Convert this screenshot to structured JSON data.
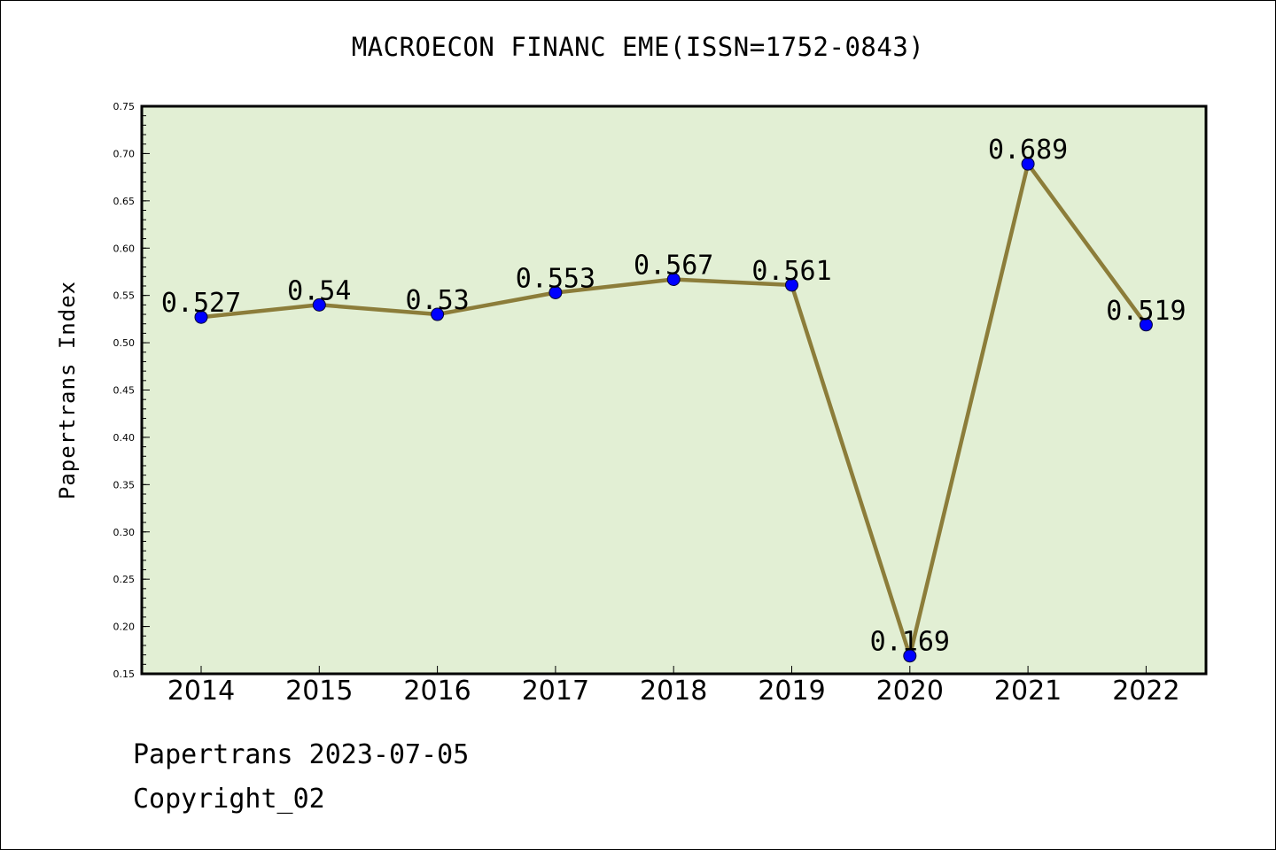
{
  "chart_data": {
    "type": "line",
    "title": "MACROECON FINANC EME(ISSN=1752-0843)",
    "xlabel": "",
    "ylabel": "Papertrans Index",
    "categories": [
      "2014",
      "2015",
      "2016",
      "2017",
      "2018",
      "2019",
      "2020",
      "2021",
      "2022"
    ],
    "series": [
      {
        "values": [
          0.527,
          0.54,
          0.53,
          0.553,
          0.567,
          0.561,
          0.169,
          0.689,
          0.519
        ],
        "labels": [
          "0.527",
          "0.54",
          "0.53",
          "0.553",
          "0.567",
          "0.561",
          "0.169",
          "0.689",
          "0.519"
        ]
      }
    ],
    "ylim": [
      0.15,
      0.75
    ],
    "yticks": [
      0.15,
      0.2,
      0.25,
      0.3,
      0.35,
      0.4,
      0.45,
      0.5,
      0.55,
      0.6,
      0.65,
      0.7,
      0.75
    ],
    "ytick_labels": [
      "0.15",
      "0.20",
      "0.25",
      "0.30",
      "0.35",
      "0.40",
      "0.45",
      "0.50",
      "0.55",
      "0.60",
      "0.65",
      "0.70",
      "0.75"
    ],
    "grid": false,
    "colors": {
      "plot_background": "#e2efd4",
      "line": "#8c7d3a",
      "marker": "#0000ff"
    }
  },
  "footer": {
    "line1": "Papertrans 2023-07-05",
    "line2": "Copyright_02"
  }
}
